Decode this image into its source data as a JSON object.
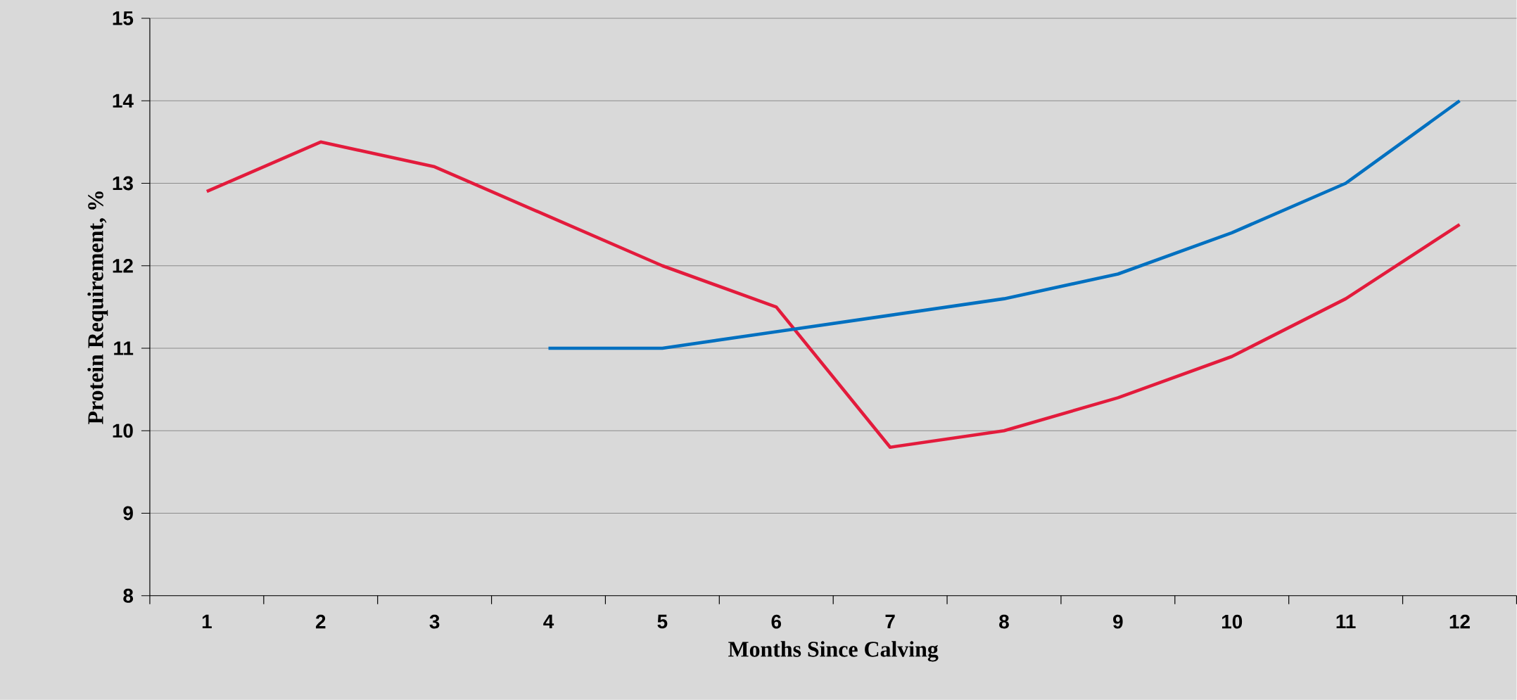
{
  "chart_data": {
    "type": "line",
    "xlabel": "Months Since Calving",
    "ylabel": "Protein Requirement, %",
    "categories": [
      "1",
      "2",
      "3",
      "4",
      "5",
      "6",
      "7",
      "8",
      "9",
      "10",
      "11",
      "12"
    ],
    "series": [
      {
        "color": "#e31b3c",
        "values": [
          12.9,
          13.5,
          13.2,
          12.6,
          12.0,
          11.5,
          9.8,
          10.0,
          10.4,
          10.9,
          11.6,
          12.5
        ]
      },
      {
        "color": "#0070c0",
        "values": [
          null,
          null,
          null,
          11.0,
          11.0,
          11.2,
          11.4,
          11.6,
          11.9,
          12.4,
          13.0,
          14.0
        ]
      }
    ],
    "ylim": [
      8,
      15
    ],
    "yticks": [
      8,
      9,
      10,
      11,
      12,
      13,
      14,
      15
    ],
    "grid": "y",
    "marker": "none",
    "line_style": "solid"
  }
}
